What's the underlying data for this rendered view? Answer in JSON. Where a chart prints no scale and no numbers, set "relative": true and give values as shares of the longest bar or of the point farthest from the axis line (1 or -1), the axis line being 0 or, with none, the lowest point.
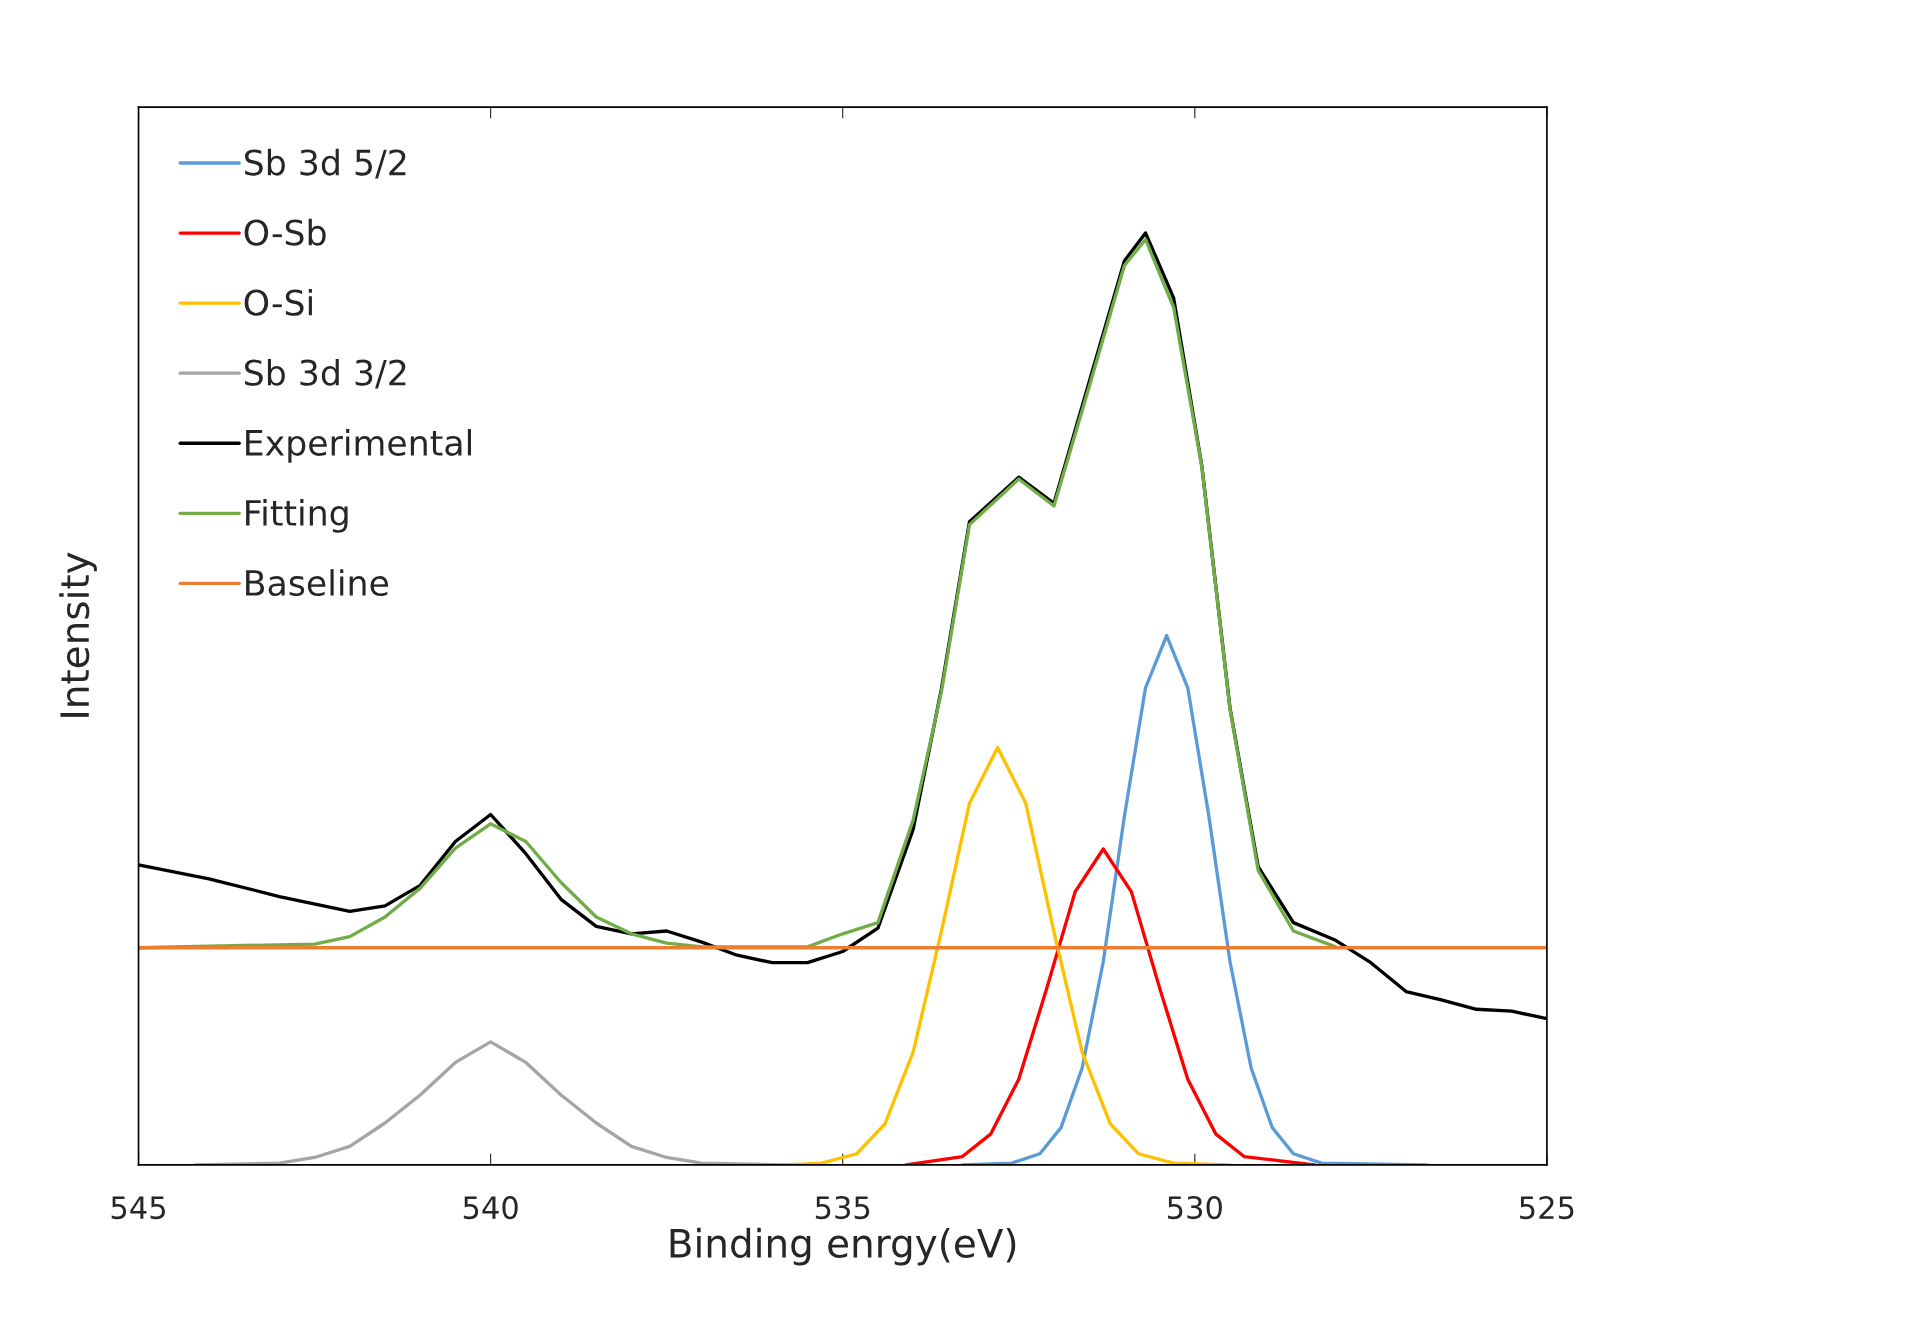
{
  "chart_data": {
    "type": "line",
    "relative": true,
    "xlabel": "Binding enrgy(eV)",
    "ylabel": "Intensity",
    "xlim": [
      545,
      525
    ],
    "xticks": [
      545,
      540,
      535,
      530,
      525
    ],
    "legend": "top left",
    "grid": false,
    "series": [
      {
        "name": "Sb 3d 5/2",
        "color": "#5b9bd5",
        "x": [
          533.3,
          532.6,
          532.2,
          531.9,
          531.6,
          531.3,
          531.0,
          530.7,
          530.4,
          530.1,
          529.8,
          529.5,
          529.2,
          528.9,
          528.6,
          528.2,
          526.7
        ],
        "values": [
          0.0,
          0.002,
          0.012,
          0.04,
          0.104,
          0.218,
          0.374,
          0.512,
          0.568,
          0.512,
          0.374,
          0.218,
          0.104,
          0.04,
          0.012,
          0.002,
          0.0
        ]
      },
      {
        "name": "O-Sb",
        "color": "#ff0000",
        "x": [
          534.1,
          533.3,
          532.9,
          532.5,
          532.1,
          531.7,
          531.3,
          530.9,
          530.5,
          530.1,
          529.7,
          529.3,
          528.3
        ],
        "values": [
          0.0,
          0.009,
          0.033,
          0.092,
          0.19,
          0.293,
          0.339,
          0.293,
          0.19,
          0.092,
          0.033,
          0.009,
          0.0
        ]
      },
      {
        "name": "O-Si",
        "color": "#ffc000",
        "x": [
          535.8,
          535.3,
          534.8,
          534.4,
          534.0,
          533.6,
          533.2,
          532.8,
          532.4,
          532.0,
          531.6,
          531.2,
          530.8,
          530.3,
          529.5
        ],
        "values": [
          0.0,
          0.002,
          0.012,
          0.044,
          0.121,
          0.25,
          0.388,
          0.448,
          0.388,
          0.25,
          0.121,
          0.044,
          0.012,
          0.002,
          0.0
        ]
      },
      {
        "name": "Sb 3d 3/2",
        "color": "#a5a5a5",
        "x": [
          544.2,
          543.0,
          542.5,
          542.0,
          541.5,
          541.0,
          540.5,
          540.0,
          539.5,
          539.0,
          538.5,
          538.0,
          537.5,
          537.0,
          535.8
        ],
        "values": [
          0.0,
          0.002,
          0.008,
          0.02,
          0.045,
          0.075,
          0.11,
          0.132,
          0.11,
          0.075,
          0.045,
          0.02,
          0.008,
          0.002,
          0.0
        ]
      },
      {
        "name": "Experimental",
        "color": "#000000",
        "x": [
          545,
          544,
          543,
          542,
          541.5,
          541,
          540.5,
          540,
          539.5,
          539,
          538.5,
          538,
          537.5,
          537,
          536.5,
          536,
          535.5,
          535,
          534.5,
          534,
          533.6,
          533.2,
          532.5,
          532.0,
          531.5,
          531.0,
          530.7,
          530.3,
          529.9,
          529.5,
          529.1,
          528.6,
          528.0,
          527.5,
          527,
          526.5,
          526,
          525.5,
          525
        ],
        "values": [
          0.322,
          0.307,
          0.288,
          0.272,
          0.278,
          0.3,
          0.347,
          0.376,
          0.334,
          0.285,
          0.256,
          0.248,
          0.251,
          0.239,
          0.225,
          0.217,
          0.217,
          0.229,
          0.254,
          0.36,
          0.51,
          0.69,
          0.738,
          0.71,
          0.84,
          0.97,
          1.0,
          0.93,
          0.75,
          0.49,
          0.32,
          0.26,
          0.241,
          0.217,
          0.186,
          0.177,
          0.167,
          0.165,
          0.157
        ]
      },
      {
        "name": "Fitting",
        "color": "#70ad47",
        "x": [
          545,
          542.5,
          542,
          541.5,
          541,
          540.5,
          540,
          539.5,
          539,
          538.5,
          538,
          537.5,
          537,
          535.5,
          535,
          534.5,
          534,
          533.6,
          533.2,
          532.5,
          532.0,
          531.5,
          531.0,
          530.7,
          530.3,
          529.9,
          529.5,
          529.1,
          528.6,
          528.0
        ],
        "values": [
          0.233,
          0.237,
          0.245,
          0.266,
          0.297,
          0.34,
          0.366,
          0.347,
          0.303,
          0.266,
          0.248,
          0.238,
          0.234,
          0.234,
          0.248,
          0.26,
          0.37,
          0.507,
          0.687,
          0.736,
          0.707,
          0.835,
          0.965,
          0.993,
          0.92,
          0.749,
          0.489,
          0.316,
          0.251,
          0.234
        ]
      },
      {
        "name": "Baseline",
        "color": "#ed7d31",
        "x": [
          545,
          525
        ],
        "values": [
          0.233,
          0.233
        ]
      }
    ]
  }
}
